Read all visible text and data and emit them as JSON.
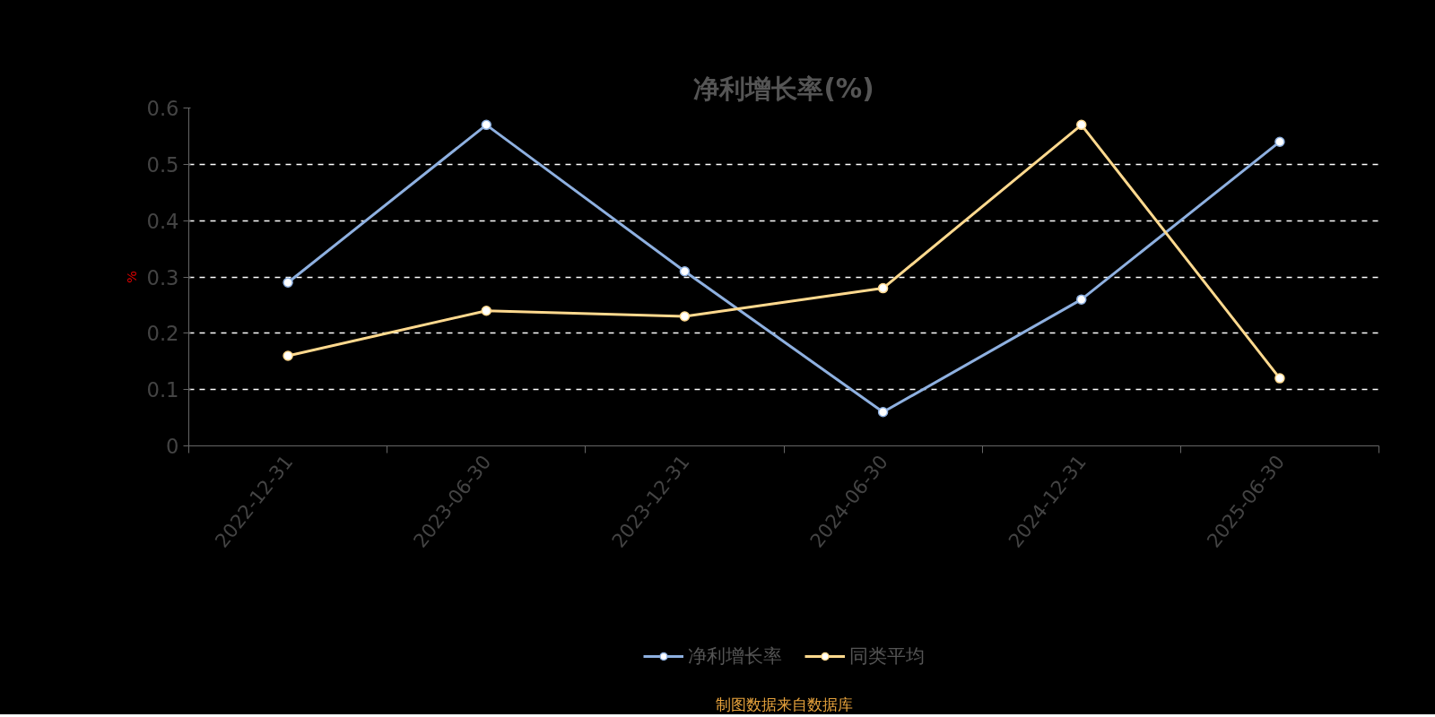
{
  "chart_data": {
    "type": "line",
    "title": "净利增长率(%)",
    "ylabel": "%",
    "categories": [
      "2022-12-31",
      "2023-06-30",
      "2023-12-31",
      "2024-06-30",
      "2024-12-31",
      "2025-06-30"
    ],
    "series": [
      {
        "name": "净利增长率",
        "color": "#8eb0e0",
        "values": [
          0.29,
          0.57,
          0.31,
          0.06,
          0.26,
          0.54
        ]
      },
      {
        "name": "同类平均",
        "color": "#ffd98e",
        "values": [
          0.16,
          0.24,
          0.23,
          0.28,
          0.57,
          0.12
        ]
      }
    ],
    "ylim": [
      0,
      0.6
    ],
    "yticks": [
      0,
      0.1,
      0.2,
      0.3,
      0.4,
      0.5,
      0.6
    ],
    "grid": "y",
    "legend": "bottom",
    "marker": "circle",
    "line_style": "solid",
    "annotations": [
      "制图数据来自数据库"
    ]
  }
}
